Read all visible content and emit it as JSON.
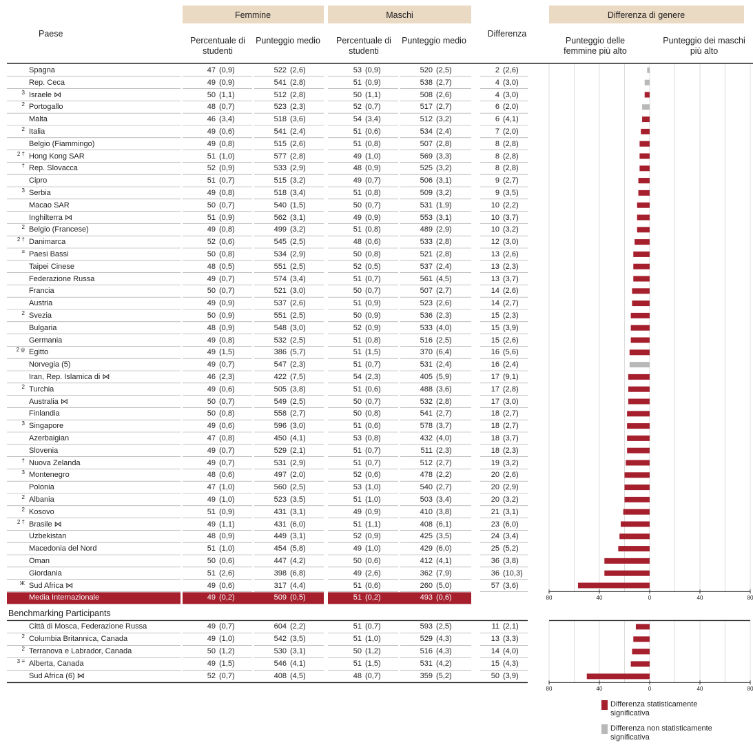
{
  "header": {
    "country": "Paese",
    "groups": [
      {
        "title": "Femmine",
        "columns": [
          "Percentuale di studenti",
          "Punteggio medio"
        ]
      },
      {
        "title": "Maschi",
        "columns": [
          "Percentuale di studenti",
          "Punteggio medio"
        ]
      }
    ],
    "difference": "Differenza",
    "chart_title": "Differenza di genere",
    "chart_left": "Punteggio delle femmine più alto",
    "chart_right": "Punteggio dei maschi più alto"
  },
  "rows": [
    {
      "name": "Spagna",
      "fp": 47,
      "fpse": "(0,9)",
      "fs": 522,
      "fsse": "(2,6)",
      "mp": 53,
      "mpse": "(0,9)",
      "ms": 520,
      "msse": "(2,5)",
      "d": 2,
      "dse": "(2,6)",
      "sig": false
    },
    {
      "name": "Rep. Ceca",
      "fp": 49,
      "fpse": "(0,9)",
      "fs": 541,
      "fsse": "(2,8)",
      "mp": 51,
      "mpse": "(0,9)",
      "ms": 538,
      "msse": "(2,7)",
      "d": 4,
      "dse": "(3,0)",
      "sig": false
    },
    {
      "sup": "3",
      "name": "Israele ⋈",
      "fp": 50,
      "fpse": "(1,1)",
      "fs": 512,
      "fsse": "(2,8)",
      "mp": 50,
      "mpse": "(1,1)",
      "ms": 508,
      "msse": "(2,6)",
      "d": 4,
      "dse": "(3,0)",
      "sig": true
    },
    {
      "sup": "2",
      "name": "Portogallo",
      "fp": 48,
      "fpse": "(0,7)",
      "fs": 523,
      "fsse": "(2,3)",
      "mp": 52,
      "mpse": "(0,7)",
      "ms": 517,
      "msse": "(2,7)",
      "d": 6,
      "dse": "(2,0)",
      "sig": false
    },
    {
      "name": "Malta",
      "fp": 46,
      "fpse": "(3,4)",
      "fs": 518,
      "fsse": "(3,6)",
      "mp": 54,
      "mpse": "(3,4)",
      "ms": 512,
      "msse": "(3,2)",
      "d": 6,
      "dse": "(4,1)",
      "sig": true
    },
    {
      "sup": "2",
      "name": "Italia",
      "fp": 49,
      "fpse": "(0,6)",
      "fs": 541,
      "fsse": "(2,4)",
      "mp": 51,
      "mpse": "(0,6)",
      "ms": 534,
      "msse": "(2,4)",
      "d": 7,
      "dse": "(2,0)",
      "sig": true
    },
    {
      "name": "Belgio (Fiammingo)",
      "fp": 49,
      "fpse": "(0,8)",
      "fs": 515,
      "fsse": "(2,6)",
      "mp": 51,
      "mpse": "(0,8)",
      "ms": 507,
      "msse": "(2,8)",
      "d": 8,
      "dse": "(2,8)",
      "sig": true
    },
    {
      "sup": "2 †",
      "name": "Hong Kong SAR",
      "fp": 51,
      "fpse": "(1,0)",
      "fs": 577,
      "fsse": "(2,8)",
      "mp": 49,
      "mpse": "(1,0)",
      "ms": 569,
      "msse": "(3,3)",
      "d": 8,
      "dse": "(2,8)",
      "sig": true
    },
    {
      "sup": "†",
      "name": "Rep. Slovacca",
      "fp": 52,
      "fpse": "(0,9)",
      "fs": 533,
      "fsse": "(2,9)",
      "mp": 48,
      "mpse": "(0,9)",
      "ms": 525,
      "msse": "(3,2)",
      "d": 8,
      "dse": "(2,8)",
      "sig": true
    },
    {
      "name": "Cipro",
      "fp": 51,
      "fpse": "(0,7)",
      "fs": 515,
      "fsse": "(3,2)",
      "mp": 49,
      "mpse": "(0,7)",
      "ms": 506,
      "msse": "(3,1)",
      "d": 9,
      "dse": "(2,7)",
      "sig": true
    },
    {
      "sup": "3",
      "name": "Serbia",
      "fp": 49,
      "fpse": "(0,8)",
      "fs": 518,
      "fsse": "(3,4)",
      "mp": 51,
      "mpse": "(0,8)",
      "ms": 509,
      "msse": "(3,2)",
      "d": 9,
      "dse": "(3,5)",
      "sig": true
    },
    {
      "name": "Macao SAR",
      "fp": 50,
      "fpse": "(0,7)",
      "fs": 540,
      "fsse": "(1,5)",
      "mp": 50,
      "mpse": "(0,7)",
      "ms": 531,
      "msse": "(1,9)",
      "d": 10,
      "dse": "(2,2)",
      "sig": true
    },
    {
      "name": "Inghilterra ⋈",
      "fp": 51,
      "fpse": "(0,9)",
      "fs": 562,
      "fsse": "(3,1)",
      "mp": 49,
      "mpse": "(0,9)",
      "ms": 553,
      "msse": "(3,1)",
      "d": 10,
      "dse": "(3,7)",
      "sig": true
    },
    {
      "sup": "2",
      "name": "Belgio (Francese)",
      "fp": 49,
      "fpse": "(0,8)",
      "fs": 499,
      "fsse": "(3,2)",
      "mp": 51,
      "mpse": "(0,8)",
      "ms": 489,
      "msse": "(2,9)",
      "d": 10,
      "dse": "(3,2)",
      "sig": true
    },
    {
      "sup": "2 †",
      "name": "Danimarca",
      "fp": 52,
      "fpse": "(0,6)",
      "fs": 545,
      "fsse": "(2,5)",
      "mp": 48,
      "mpse": "(0,6)",
      "ms": 533,
      "msse": "(2,8)",
      "d": 12,
      "dse": "(3,0)",
      "sig": true
    },
    {
      "sup": "≡",
      "name": "Paesi Bassi",
      "fp": 50,
      "fpse": "(0,8)",
      "fs": 534,
      "fsse": "(2,9)",
      "mp": 50,
      "mpse": "(0,8)",
      "ms": 521,
      "msse": "(2,8)",
      "d": 13,
      "dse": "(2,6)",
      "sig": true
    },
    {
      "name": "Taipei Cinese",
      "fp": 48,
      "fpse": "(0,5)",
      "fs": 551,
      "fsse": "(2,5)",
      "mp": 52,
      "mpse": "(0,5)",
      "ms": 537,
      "msse": "(2,4)",
      "d": 13,
      "dse": "(2,3)",
      "sig": true
    },
    {
      "name": "Federazione Russa",
      "fp": 49,
      "fpse": "(0,7)",
      "fs": 574,
      "fsse": "(3,4)",
      "mp": 51,
      "mpse": "(0,7)",
      "ms": 561,
      "msse": "(4,5)",
      "d": 13,
      "dse": "(3,7)",
      "sig": true
    },
    {
      "name": "Francia",
      "fp": 50,
      "fpse": "(0,7)",
      "fs": 521,
      "fsse": "(3,0)",
      "mp": 50,
      "mpse": "(0,7)",
      "ms": 507,
      "msse": "(2,7)",
      "d": 14,
      "dse": "(2,6)",
      "sig": true
    },
    {
      "name": "Austria",
      "fp": 49,
      "fpse": "(0,9)",
      "fs": 537,
      "fsse": "(2,6)",
      "mp": 51,
      "mpse": "(0,9)",
      "ms": 523,
      "msse": "(2,6)",
      "d": 14,
      "dse": "(2,7)",
      "sig": true
    },
    {
      "sup": "2",
      "name": "Svezia",
      "fp": 50,
      "fpse": "(0,9)",
      "fs": 551,
      "fsse": "(2,5)",
      "mp": 50,
      "mpse": "(0,9)",
      "ms": 536,
      "msse": "(2,3)",
      "d": 15,
      "dse": "(2,3)",
      "sig": true
    },
    {
      "name": "Bulgaria",
      "fp": 48,
      "fpse": "(0,9)",
      "fs": 548,
      "fsse": "(3,0)",
      "mp": 52,
      "mpse": "(0,9)",
      "ms": 533,
      "msse": "(4,0)",
      "d": 15,
      "dse": "(3,9)",
      "sig": true
    },
    {
      "name": "Germania",
      "fp": 49,
      "fpse": "(0,8)",
      "fs": 532,
      "fsse": "(2,5)",
      "mp": 51,
      "mpse": "(0,8)",
      "ms": 516,
      "msse": "(2,5)",
      "d": 15,
      "dse": "(2,6)",
      "sig": true
    },
    {
      "sup": "2 ψ",
      "name": "Egitto",
      "fp": 49,
      "fpse": "(1,5)",
      "fs": 386,
      "fsse": "(5,7)",
      "mp": 51,
      "mpse": "(1,5)",
      "ms": 370,
      "msse": "(6,4)",
      "d": 16,
      "dse": "(5,6)",
      "sig": true
    },
    {
      "name": "Norvegia (5)",
      "fp": 49,
      "fpse": "(0,7)",
      "fs": 547,
      "fsse": "(2,3)",
      "mp": 51,
      "mpse": "(0,7)",
      "ms": 531,
      "msse": "(2,4)",
      "d": 16,
      "dse": "(2,4)",
      "sig": false
    },
    {
      "name": "Iran, Rep. Islamica di  ⋈",
      "fp": 46,
      "fpse": "(2,3)",
      "fs": 422,
      "fsse": "(7,5)",
      "mp": 54,
      "mpse": "(2,3)",
      "ms": 405,
      "msse": "(5,9)",
      "d": 17,
      "dse": "(9,1)",
      "sig": true
    },
    {
      "sup": "2",
      "name": "Turchia",
      "fp": 49,
      "fpse": "(0,6)",
      "fs": 505,
      "fsse": "(3,8)",
      "mp": 51,
      "mpse": "(0,6)",
      "ms": 488,
      "msse": "(3,6)",
      "d": 17,
      "dse": "(2,8)",
      "sig": true
    },
    {
      "name": "Australia ⋈",
      "fp": 50,
      "fpse": "(0,7)",
      "fs": 549,
      "fsse": "(2,5)",
      "mp": 50,
      "mpse": "(0,7)",
      "ms": 532,
      "msse": "(2,8)",
      "d": 17,
      "dse": "(3,0)",
      "sig": true
    },
    {
      "name": "Finlandia",
      "fp": 50,
      "fpse": "(0,8)",
      "fs": 558,
      "fsse": "(2,7)",
      "mp": 50,
      "mpse": "(0,8)",
      "ms": 541,
      "msse": "(2,7)",
      "d": 18,
      "dse": "(2,7)",
      "sig": true
    },
    {
      "sup": "3",
      "name": "Singapore",
      "fp": 49,
      "fpse": "(0,6)",
      "fs": 596,
      "fsse": "(3,0)",
      "mp": 51,
      "mpse": "(0,6)",
      "ms": 578,
      "msse": "(3,7)",
      "d": 18,
      "dse": "(2,7)",
      "sig": true
    },
    {
      "name": "Azerbaigian",
      "fp": 47,
      "fpse": "(0,8)",
      "fs": 450,
      "fsse": "(4,1)",
      "mp": 53,
      "mpse": "(0,8)",
      "ms": 432,
      "msse": "(4,0)",
      "d": 18,
      "dse": "(3,7)",
      "sig": true
    },
    {
      "name": "Slovenia",
      "fp": 49,
      "fpse": "(0,7)",
      "fs": 529,
      "fsse": "(2,1)",
      "mp": 51,
      "mpse": "(0,7)",
      "ms": 511,
      "msse": "(2,3)",
      "d": 18,
      "dse": "(2,3)",
      "sig": true
    },
    {
      "sup": "†",
      "name": "Nuova Zelanda",
      "fp": 49,
      "fpse": "(0,7)",
      "fs": 531,
      "fsse": "(2,9)",
      "mp": 51,
      "mpse": "(0,7)",
      "ms": 512,
      "msse": "(2,7)",
      "d": 19,
      "dse": "(3,2)",
      "sig": true
    },
    {
      "sup": "3",
      "name": "Montenegro",
      "fp": 48,
      "fpse": "(0,6)",
      "fs": 497,
      "fsse": "(2,0)",
      "mp": 52,
      "mpse": "(0,6)",
      "ms": 478,
      "msse": "(2,2)",
      "d": 20,
      "dse": "(2,6)",
      "sig": true
    },
    {
      "name": "Polonia",
      "fp": 47,
      "fpse": "(1,0)",
      "fs": 560,
      "fsse": "(2,5)",
      "mp": 53,
      "mpse": "(1,0)",
      "ms": 540,
      "msse": "(2,7)",
      "d": 20,
      "dse": "(2,9)",
      "sig": true
    },
    {
      "sup": "2",
      "name": "Albania",
      "fp": 49,
      "fpse": "(1,0)",
      "fs": 523,
      "fsse": "(3,5)",
      "mp": 51,
      "mpse": "(1,0)",
      "ms": 503,
      "msse": "(3,4)",
      "d": 20,
      "dse": "(3,2)",
      "sig": true
    },
    {
      "sup": "2",
      "name": "Kosovo",
      "fp": 51,
      "fpse": "(0,9)",
      "fs": 431,
      "fsse": "(3,1)",
      "mp": 49,
      "mpse": "(0,9)",
      "ms": 410,
      "msse": "(3,8)",
      "d": 21,
      "dse": "(3,1)",
      "sig": true
    },
    {
      "sup": "2 †",
      "name": "Brasile ⋈",
      "fp": 49,
      "fpse": "(1,1)",
      "fs": 431,
      "fsse": "(6,0)",
      "mp": 51,
      "mpse": "(1,1)",
      "ms": 408,
      "msse": "(6,1)",
      "d": 23,
      "dse": "(6,0)",
      "sig": true
    },
    {
      "name": "Uzbekistan",
      "fp": 48,
      "fpse": "(0,9)",
      "fs": 449,
      "fsse": "(3,1)",
      "mp": 52,
      "mpse": "(0,9)",
      "ms": 425,
      "msse": "(3,5)",
      "d": 24,
      "dse": "(3,4)",
      "sig": true
    },
    {
      "name": "Macedonia del Nord",
      "fp": 51,
      "fpse": "(1,0)",
      "fs": 454,
      "fsse": "(5,8)",
      "mp": 49,
      "mpse": "(1,0)",
      "ms": 429,
      "msse": "(6,0)",
      "d": 25,
      "dse": "(5,2)",
      "sig": true
    },
    {
      "name": "Oman",
      "fp": 50,
      "fpse": "(0,6)",
      "fs": 447,
      "fsse": "(4,2)",
      "mp": 50,
      "mpse": "(0,6)",
      "ms": 412,
      "msse": "(4,1)",
      "d": 36,
      "dse": "(3,8)",
      "sig": true
    },
    {
      "name": "Giordania",
      "fp": 51,
      "fpse": "(2,6)",
      "fs": 398,
      "fsse": "(6,8)",
      "mp": 49,
      "mpse": "(2,6)",
      "ms": 362,
      "msse": "(7,9)",
      "d": 36,
      "dse": "(10,3)",
      "sig": true
    },
    {
      "sup": "Ж",
      "name": "Sud Africa ⋈",
      "fp": 49,
      "fpse": "(0,6)",
      "fs": 317,
      "fsse": "(4,4)",
      "mp": 51,
      "mpse": "(0,6)",
      "ms": 260,
      "msse": "(5,0)",
      "d": 57,
      "dse": "(3,6)",
      "sig": true
    }
  ],
  "average": {
    "name": "Media Internazionale",
    "fp": 49,
    "fpse": "(0,2)",
    "fs": 509,
    "fsse": "(0,5)",
    "mp": 51,
    "mpse": "(0,2)",
    "ms": 493,
    "msse": "(0,6)"
  },
  "benchmark_title": "Benchmarking Participants",
  "benchmark_rows": [
    {
      "name": "Città di Mosca, Federazione Russa",
      "fp": 49,
      "fpse": "(0,7)",
      "fs": 604,
      "fsse": "(2,2)",
      "mp": 51,
      "mpse": "(0,7)",
      "ms": 593,
      "msse": "(2,5)",
      "d": 11,
      "dse": "(2,1)",
      "sig": true
    },
    {
      "sup": "2",
      "name": "Columbia Britannica, Canada",
      "fp": 49,
      "fpse": "(1,0)",
      "fs": 542,
      "fsse": "(3,5)",
      "mp": 51,
      "mpse": "(1,0)",
      "ms": 529,
      "msse": "(4,3)",
      "d": 13,
      "dse": "(3,3)",
      "sig": true
    },
    {
      "sup": "2",
      "name": "Terranova e Labrador, Canada",
      "fp": 50,
      "fpse": "(1,2)",
      "fs": 530,
      "fsse": "(3,1)",
      "mp": 50,
      "mpse": "(1,2)",
      "ms": 516,
      "msse": "(4,3)",
      "d": 14,
      "dse": "(4,0)",
      "sig": true
    },
    {
      "sup": "3 ≡",
      "name": "Alberta, Canada",
      "fp": 49,
      "fpse": "(1,5)",
      "fs": 546,
      "fsse": "(4,1)",
      "mp": 51,
      "mpse": "(1,5)",
      "ms": 531,
      "msse": "(4,2)",
      "d": 15,
      "dse": "(4,3)",
      "sig": true
    },
    {
      "name": "Sud Africa (6)  ⋈",
      "fp": 52,
      "fpse": "(0,7)",
      "fs": 408,
      "fsse": "(4,5)",
      "mp": 48,
      "mpse": "(0,7)",
      "ms": 359,
      "msse": "(5,2)",
      "d": 50,
      "dse": "(3,9)",
      "sig": true
    }
  ],
  "axis": {
    "xlim": [
      80,
      -80
    ],
    "xticks": [
      80,
      40,
      0,
      {
        "value": -40,
        "label": "40"
      },
      {
        "value": -80,
        "label": "80"
      }
    ],
    "grid": [
      80,
      60,
      40,
      20,
      0,
      -20,
      -40,
      -60,
      -80
    ]
  },
  "legend": {
    "significant": {
      "label": "Differenza statisticamente significativa",
      "color": "#a51f2d"
    },
    "not_significant": {
      "label": "Differenza non statisticamente significativa",
      "color": "#b8b8b8"
    }
  }
}
